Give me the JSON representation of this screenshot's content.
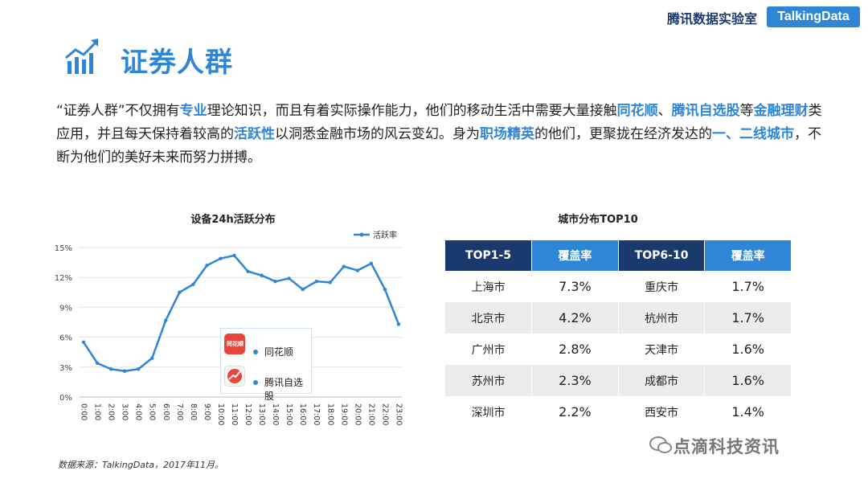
{
  "header": {
    "brand": "腾讯数据实验室",
    "logo": "TalkingData"
  },
  "page": {
    "title": "证券人群",
    "title_icon": "bar-chart-growth-icon"
  },
  "intro": [
    {
      "t": "“证券人群”不仅拥有",
      "h": false
    },
    {
      "t": "专业",
      "h": true
    },
    {
      "t": "理论知识，而且有着实际操作能力，他们的移动生活中需要大量接触",
      "h": false
    },
    {
      "t": "同花顺",
      "h": true
    },
    {
      "t": "、",
      "h": false
    },
    {
      "t": "腾讯自选股",
      "h": true
    },
    {
      "t": "等",
      "h": false
    },
    {
      "t": "金融理财",
      "h": true
    },
    {
      "t": "类应用，并且每天保持着较高的",
      "h": false
    },
    {
      "t": "活跃性",
      "h": true
    },
    {
      "t": "以洞悉金融市场的风云变幻。身为",
      "h": false
    },
    {
      "t": "职场精英",
      "h": true
    },
    {
      "t": "的他们，更聚拢在经济发达的",
      "h": false
    },
    {
      "t": "一、二线城市",
      "h": true
    },
    {
      "t": "，不断为他们的美好未来而努力拼搏。",
      "h": false
    }
  ],
  "chart_data": [
    {
      "type": "line",
      "title": "设备24h活跃分布",
      "series": [
        {
          "name": "活跃率",
          "values": [
            5.5,
            3.4,
            2.8,
            2.6,
            2.8,
            3.9,
            7.7,
            10.5,
            11.3,
            13.2,
            13.9,
            14.2,
            12.6,
            12.2,
            11.6,
            11.9,
            10.8,
            11.6,
            11.5,
            13.1,
            12.7,
            13.4,
            10.8,
            7.3
          ]
        }
      ],
      "x": [
        "0:00",
        "1:00",
        "2:00",
        "3:00",
        "4:00",
        "5:00",
        "6:00",
        "7:00",
        "8:00",
        "9:00",
        "10:00",
        "11:00",
        "12:00",
        "13:00",
        "14:00",
        "15:00",
        "16:00",
        "17:00",
        "18:00",
        "19:00",
        "20:00",
        "21:00",
        "22:00",
        "23:00"
      ],
      "yticks": [
        "0%",
        "3%",
        "6%",
        "9%",
        "12%",
        "15%"
      ],
      "ylim": [
        0,
        15
      ],
      "grid": true,
      "legend": "top-right",
      "color": "#2f86d6",
      "apps": [
        {
          "name": "同花顺",
          "icon": "tonghuashun-app-icon",
          "icon_text": "同花顺"
        },
        {
          "name": "腾讯自选股",
          "icon": "tencent-stock-app-icon"
        }
      ]
    },
    {
      "type": "table",
      "title": "城市分布TOP10",
      "columns": [
        "TOP1-5",
        "覆盖率",
        "TOP6-10",
        "覆盖率"
      ],
      "rows": [
        [
          "上海市",
          "7.3%",
          "重庆市",
          "1.7%"
        ],
        [
          "北京市",
          "4.2%",
          "杭州市",
          "1.7%"
        ],
        [
          "广州市",
          "2.8%",
          "天津市",
          "1.6%"
        ],
        [
          "苏州市",
          "2.3%",
          "成都市",
          "1.6%"
        ],
        [
          "深圳市",
          "2.2%",
          "西安市",
          "1.4%"
        ]
      ]
    }
  ],
  "source": "数据来源：TalkingData，2017年11月。",
  "watermark": "点滴科技资讯",
  "colors": {
    "accent": "#2f86d6",
    "navy": "#1a3a6e",
    "row_alt": "#ececec"
  }
}
